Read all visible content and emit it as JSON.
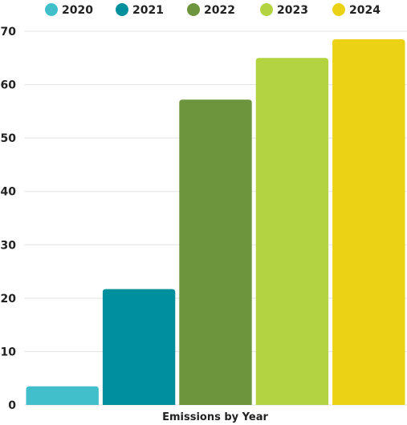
{
  "chart_data": {
    "type": "bar",
    "title": "",
    "xlabel": "Emissions by Year",
    "ylabel": "",
    "ylim": [
      0,
      70
    ],
    "yticks": [
      0,
      10,
      20,
      30,
      40,
      50,
      60,
      70
    ],
    "grid": true,
    "legend_position": "top",
    "series": [
      {
        "name": "2020",
        "value": 3.5,
        "color": "#41bfcb"
      },
      {
        "name": "2021",
        "value": 21.7,
        "color": "#008f9d"
      },
      {
        "name": "2022",
        "value": 57.2,
        "color": "#6d953e"
      },
      {
        "name": "2023",
        "value": 65.0,
        "color": "#b3d340"
      },
      {
        "name": "2024",
        "value": 68.5,
        "color": "#ecd215"
      }
    ]
  }
}
